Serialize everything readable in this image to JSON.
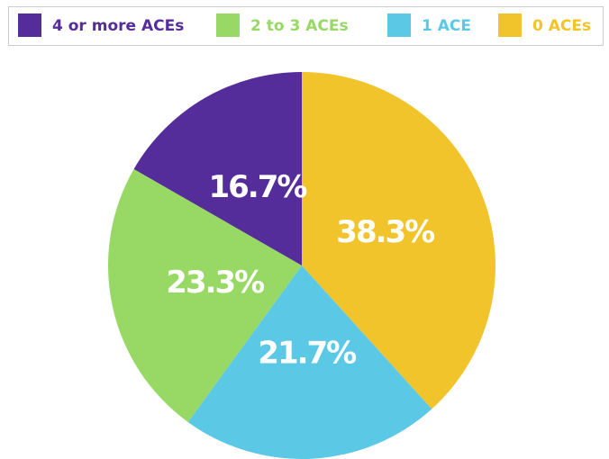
{
  "chart_data": {
    "type": "pie",
    "categories": [
      "4 or more ACEs",
      "2 to 3 ACEs",
      "1 ACE",
      "0 ACEs"
    ],
    "values": [
      16.7,
      23.3,
      21.7,
      38.3
    ],
    "value_labels": [
      "16.7%",
      "23.3%",
      "21.7%",
      "38.3%"
    ],
    "colors": [
      "#552d9b",
      "#97d964",
      "#5bc8e6",
      "#f2c42c"
    ],
    "legend": "top"
  }
}
